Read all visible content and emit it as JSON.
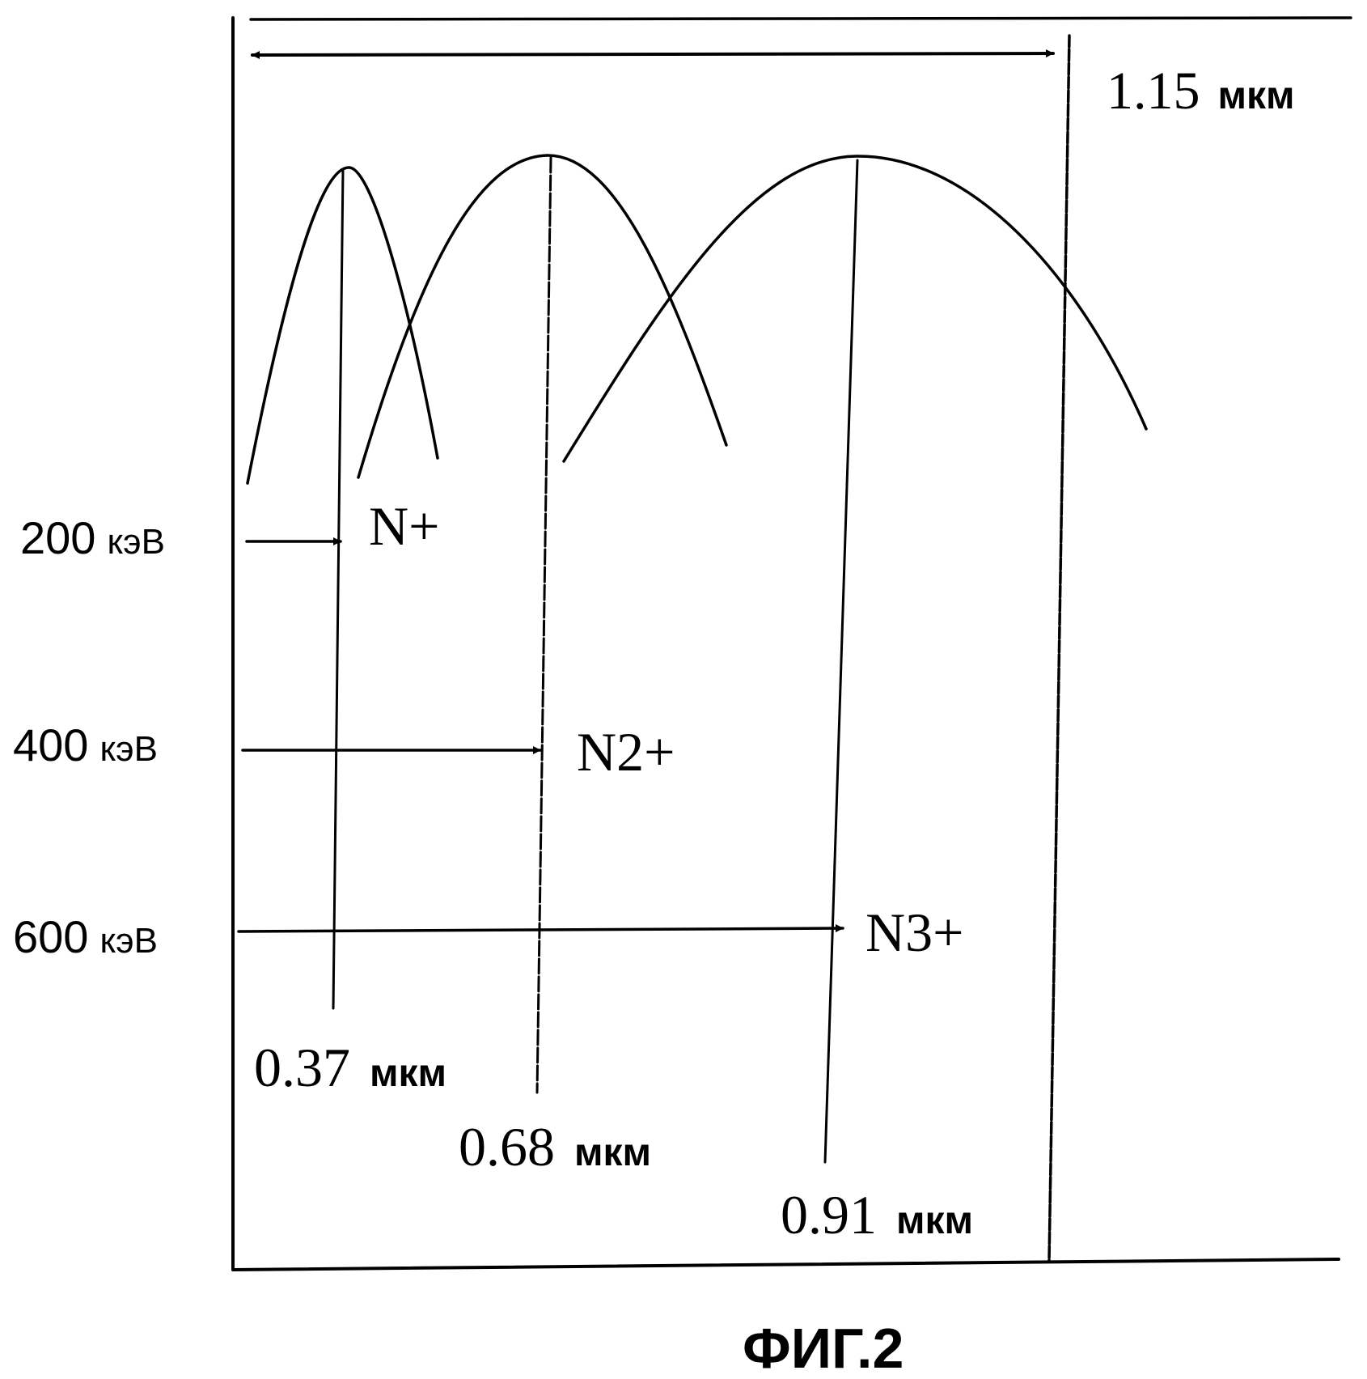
{
  "total_depth": {
    "value": "1.15",
    "unit": "мкм"
  },
  "beams": [
    {
      "energy": "200",
      "energy_unit": "кэВ",
      "ion": "N+",
      "depth": "0.37",
      "depth_unit": "мкм"
    },
    {
      "energy": "400",
      "energy_unit": "кэВ",
      "ion": "N2+",
      "depth": "0.68",
      "depth_unit": "мкм"
    },
    {
      "energy": "600",
      "energy_unit": "кэВ",
      "ion": "N3+",
      "depth": "0.91",
      "depth_unit": "мкм"
    }
  ],
  "caption": "ФИГ.2"
}
